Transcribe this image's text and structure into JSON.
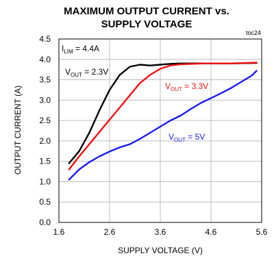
{
  "chart_data": {
    "type": "line",
    "title_line1": "MAXIMUM OUTPUT CURRENT vs.",
    "title_line2": "SUPPLY VOLTAGE",
    "tag": "toc24",
    "xlabel": "SUPPLY VOLTAGE (V)",
    "ylabel": "OUTPUT CURRENT (A)",
    "xlim": [
      1.6,
      5.6
    ],
    "ylim": [
      0,
      4.5
    ],
    "x_ticks": [
      1.6,
      2.6,
      3.6,
      4.6,
      5.6
    ],
    "x_tick_labels": [
      "1.6",
      "2.6",
      "3.6",
      "4.6",
      "5.6"
    ],
    "y_ticks": [
      0,
      0.5,
      1.0,
      1.5,
      2.0,
      2.5,
      3.0,
      3.5,
      4.0,
      4.5
    ],
    "y_tick_labels": [
      "0.0",
      "0.5",
      "1.0",
      "1.5",
      "2.0",
      "2.5",
      "3.0",
      "3.5",
      "4.0",
      "4.5"
    ],
    "grid": true,
    "ilim_label": {
      "main": "I",
      "sub": "LIM",
      "rest": " = 4.4A"
    },
    "series": [
      {
        "name_main": "V",
        "name_sub": "OUT",
        "name_rest": " = 2.3V",
        "color": "#000000",
        "points": [
          [
            1.8,
            1.45
          ],
          [
            2.0,
            1.75
          ],
          [
            2.2,
            2.2
          ],
          [
            2.4,
            2.75
          ],
          [
            2.6,
            3.25
          ],
          [
            2.8,
            3.62
          ],
          [
            3.0,
            3.82
          ],
          [
            3.2,
            3.87
          ],
          [
            3.4,
            3.85
          ],
          [
            3.6,
            3.87
          ],
          [
            3.8,
            3.89
          ],
          [
            4.0,
            3.9
          ],
          [
            4.5,
            3.9
          ],
          [
            5.0,
            3.9
          ],
          [
            5.5,
            3.91
          ]
        ]
      },
      {
        "name_main": "V",
        "name_sub": "OUT",
        "name_rest": " = 3.3V",
        "color": "#ee1111",
        "points": [
          [
            1.8,
            1.3
          ],
          [
            2.0,
            1.62
          ],
          [
            2.2,
            1.92
          ],
          [
            2.4,
            2.22
          ],
          [
            2.6,
            2.52
          ],
          [
            2.8,
            2.82
          ],
          [
            3.0,
            3.12
          ],
          [
            3.2,
            3.42
          ],
          [
            3.4,
            3.62
          ],
          [
            3.6,
            3.77
          ],
          [
            3.8,
            3.85
          ],
          [
            4.0,
            3.88
          ],
          [
            4.5,
            3.9
          ],
          [
            5.0,
            3.9
          ],
          [
            5.5,
            3.92
          ]
        ]
      },
      {
        "name_main": "V",
        "name_sub": "OUT",
        "name_rest": " = 5V",
        "color": "#1a1aee",
        "points": [
          [
            1.8,
            1.05
          ],
          [
            2.0,
            1.3
          ],
          [
            2.2,
            1.48
          ],
          [
            2.4,
            1.62
          ],
          [
            2.6,
            1.74
          ],
          [
            2.8,
            1.84
          ],
          [
            3.0,
            1.92
          ],
          [
            3.2,
            2.05
          ],
          [
            3.4,
            2.2
          ],
          [
            3.6,
            2.35
          ],
          [
            3.8,
            2.5
          ],
          [
            4.0,
            2.62
          ],
          [
            4.2,
            2.78
          ],
          [
            4.4,
            2.93
          ],
          [
            4.6,
            3.05
          ],
          [
            4.8,
            3.17
          ],
          [
            5.0,
            3.3
          ],
          [
            5.2,
            3.45
          ],
          [
            5.4,
            3.6
          ],
          [
            5.5,
            3.72
          ]
        ]
      }
    ]
  }
}
